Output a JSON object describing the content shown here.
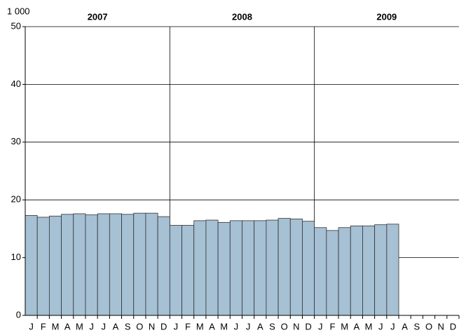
{
  "chart_data": {
    "type": "bar",
    "y_unit_label": "1 000",
    "x_groups": [
      "2007",
      "2008",
      "2009"
    ],
    "categories": [
      "J",
      "F",
      "M",
      "A",
      "M",
      "J",
      "J",
      "A",
      "S",
      "O",
      "N",
      "D",
      "J",
      "F",
      "M",
      "A",
      "M",
      "J",
      "J",
      "A",
      "S",
      "O",
      "N",
      "D",
      "J",
      "F",
      "M",
      "A",
      "M",
      "J",
      "J",
      "A",
      "S",
      "O",
      "N",
      "D"
    ],
    "values": [
      17.3,
      17.0,
      17.2,
      17.5,
      17.6,
      17.4,
      17.6,
      17.6,
      17.5,
      17.7,
      17.7,
      17.1,
      15.6,
      15.6,
      16.4,
      16.5,
      16.1,
      16.4,
      16.4,
      16.4,
      16.5,
      16.8,
      16.7,
      16.3,
      15.2,
      14.7,
      15.2,
      15.5,
      15.5,
      15.7,
      15.8,
      null,
      null,
      null,
      null,
      null
    ],
    "color": "#a6c0d4",
    "ylim": [
      0,
      50
    ],
    "yticks": [
      0,
      10,
      20,
      30,
      40,
      50
    ],
    "grid": true
  }
}
